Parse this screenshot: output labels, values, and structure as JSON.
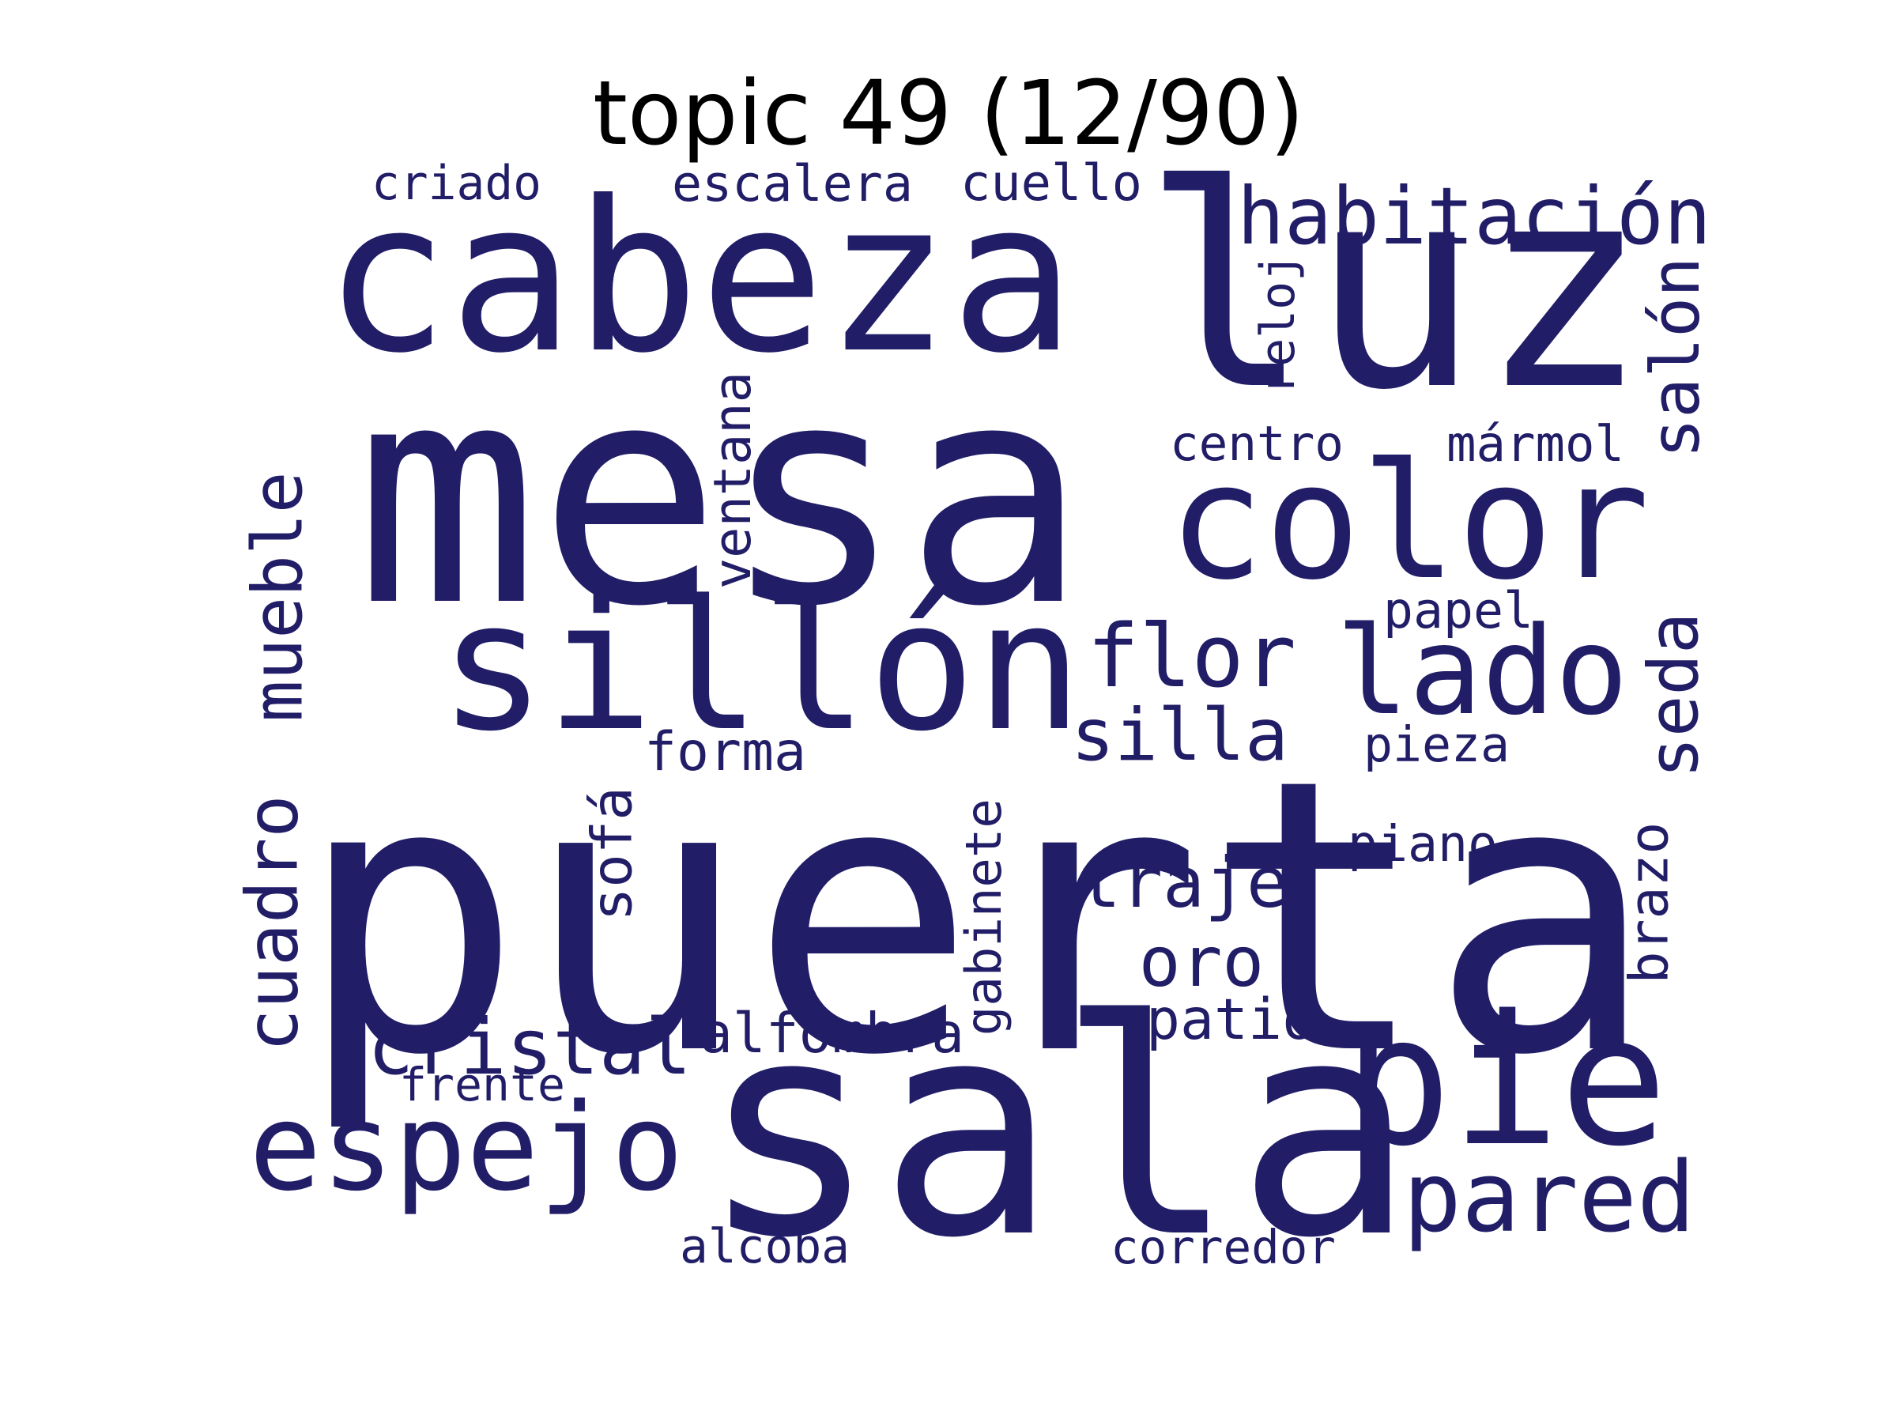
{
  "title": "topic 49 (12/90)",
  "word_color": "#211D67",
  "words": [
    {
      "text": "puerta",
      "orientation": "horizontal"
    },
    {
      "text": "mesa",
      "orientation": "horizontal"
    },
    {
      "text": "sala",
      "orientation": "horizontal"
    },
    {
      "text": "luz",
      "orientation": "horizontal"
    },
    {
      "text": "cabeza",
      "orientation": "horizontal"
    },
    {
      "text": "color",
      "orientation": "horizontal"
    },
    {
      "text": "sillón",
      "orientation": "horizontal"
    },
    {
      "text": "pie",
      "orientation": "horizontal"
    },
    {
      "text": "lado",
      "orientation": "horizontal"
    },
    {
      "text": "espejo",
      "orientation": "horizontal"
    },
    {
      "text": "flor",
      "orientation": "horizontal"
    },
    {
      "text": "pared",
      "orientation": "horizontal"
    },
    {
      "text": "habitación",
      "orientation": "horizontal"
    },
    {
      "text": "cristal",
      "orientation": "horizontal"
    },
    {
      "text": "traje",
      "orientation": "horizontal"
    },
    {
      "text": "silla",
      "orientation": "horizontal"
    },
    {
      "text": "oro",
      "orientation": "horizontal"
    },
    {
      "text": "cuadro",
      "orientation": "vertical"
    },
    {
      "text": "mueble",
      "orientation": "vertical"
    },
    {
      "text": "salón",
      "orientation": "vertical"
    },
    {
      "text": "seda",
      "orientation": "vertical"
    },
    {
      "text": "alfombra",
      "orientation": "horizontal"
    },
    {
      "text": "patio",
      "orientation": "horizontal"
    },
    {
      "text": "sofá",
      "orientation": "vertical"
    },
    {
      "text": "escalera",
      "orientation": "horizontal"
    },
    {
      "text": "cuello",
      "orientation": "horizontal"
    },
    {
      "text": "ventana",
      "orientation": "vertical"
    },
    {
      "text": "mármol",
      "orientation": "horizontal"
    },
    {
      "text": "centro",
      "orientation": "horizontal"
    },
    {
      "text": "gabinete",
      "orientation": "vertical"
    },
    {
      "text": "brazo",
      "orientation": "vertical"
    },
    {
      "text": "reloj",
      "orientation": "vertical"
    },
    {
      "text": "criado",
      "orientation": "horizontal"
    },
    {
      "text": "forma",
      "orientation": "horizontal"
    },
    {
      "text": "pieza",
      "orientation": "horizontal"
    },
    {
      "text": "piano",
      "orientation": "horizontal"
    },
    {
      "text": "papel",
      "orientation": "horizontal"
    },
    {
      "text": "frente",
      "orientation": "horizontal"
    },
    {
      "text": "alcoba",
      "orientation": "horizontal"
    },
    {
      "text": "corredor",
      "orientation": "horizontal"
    }
  ]
}
